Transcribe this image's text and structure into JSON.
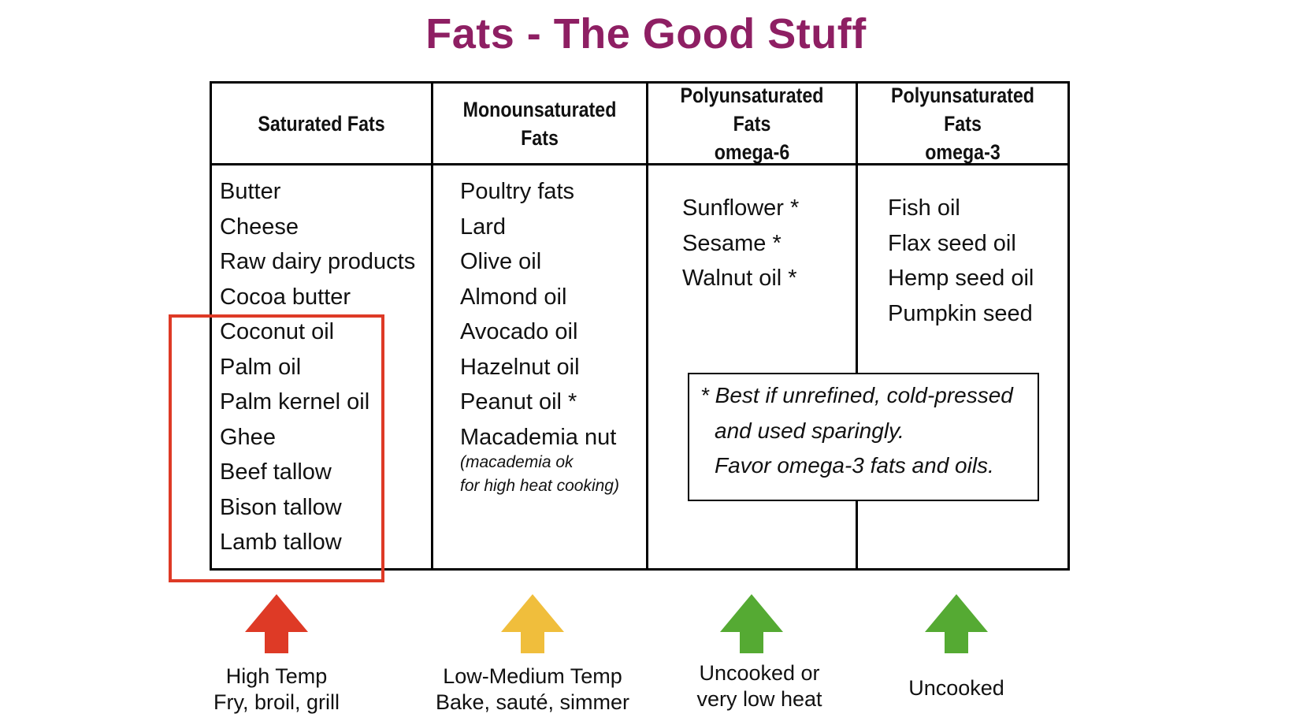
{
  "title": "Fats - The Good Stuff",
  "columns": [
    {
      "header": [
        "Saturated Fats"
      ],
      "items": [
        "Butter",
        "Cheese",
        "Raw dairy products",
        "Cocoa butter",
        "Coconut oil",
        "Palm oil",
        "Palm kernel oil",
        "Ghee",
        "Beef tallow",
        "Bison tallow",
        "Lamb tallow"
      ]
    },
    {
      "header": [
        "Monounsaturated Fats"
      ],
      "items": [
        "Poultry fats",
        "Lard",
        "Olive oil",
        "Almond oil",
        "Avocado oil",
        "Hazelnut oil",
        "Peanut oil *",
        "Macademia nut"
      ],
      "note": [
        "(macademia ok",
        "for high heat cooking)"
      ]
    },
    {
      "header": [
        "Polyunsaturated Fats",
        "omega-6"
      ],
      "items": [
        "Sunflower *",
        "Sesame *",
        "Walnut oil *"
      ]
    },
    {
      "header": [
        "Polyunsaturated Fats",
        "omega-3"
      ],
      "items": [
        "Fish oil",
        "Flax seed oil",
        "Hemp seed oil",
        "Pumpkin seed"
      ]
    }
  ],
  "footnote": [
    "* Best if unrefined, cold-pressed",
    "and used sparingly.",
    "Favor omega-3 fats and oils."
  ],
  "arrows": [
    {
      "color": "#de3a26",
      "caption": [
        "High Temp",
        "Fry, broil, grill"
      ]
    },
    {
      "color": "#f0be3c",
      "caption": [
        "Low-Medium Temp",
        "Bake, sauté, simmer"
      ]
    },
    {
      "color": "#55aa33",
      "caption": [
        "Uncooked or",
        "very low heat"
      ]
    },
    {
      "color": "#55aa33",
      "caption": [
        "Uncooked"
      ]
    }
  ],
  "highlight_color": "#de3a26",
  "title_color": "#8e1f63"
}
